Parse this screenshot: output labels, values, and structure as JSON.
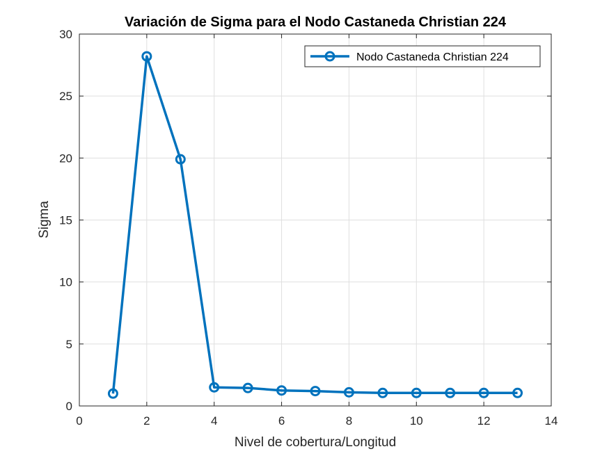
{
  "chart_data": {
    "type": "line",
    "title": "Variación de Sigma para el Nodo Castaneda Christian 224",
    "xlabel": "Nivel de cobertura/Longitud",
    "ylabel": "Sigma",
    "xlim": [
      0,
      14
    ],
    "ylim": [
      0,
      30
    ],
    "xticks": [
      0,
      2,
      4,
      6,
      8,
      10,
      12,
      14
    ],
    "yticks": [
      0,
      5,
      10,
      15,
      20,
      25,
      30
    ],
    "grid": true,
    "legend_position": "top-right",
    "series": [
      {
        "name": "Nodo Castaneda Christian 224",
        "color": "#0072BD",
        "marker": "circle",
        "x": [
          1,
          2,
          3,
          4,
          5,
          6,
          7,
          8,
          9,
          10,
          11,
          12,
          13
        ],
        "y": [
          1.0,
          28.2,
          19.9,
          1.5,
          1.45,
          1.25,
          1.2,
          1.1,
          1.05,
          1.05,
          1.05,
          1.05,
          1.05
        ]
      }
    ]
  }
}
